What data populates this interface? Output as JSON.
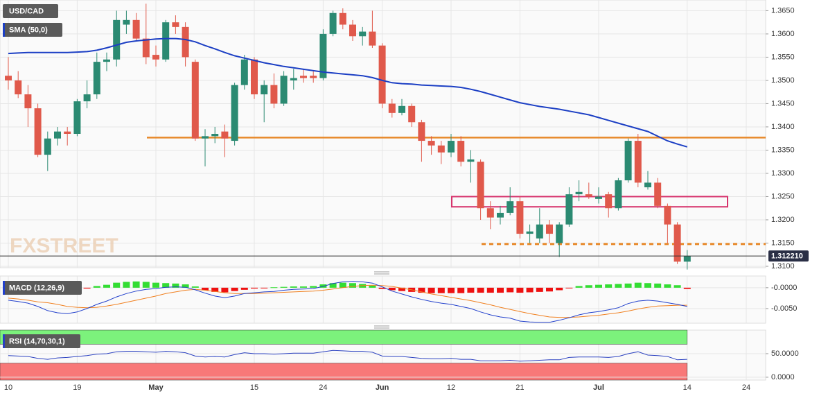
{
  "chart_data": [
    {
      "type": "candlestick",
      "title": "USD/CAD",
      "sma_label": "SMA (50,0)",
      "watermark": "FXSTREET",
      "up_color": "#2b8a72",
      "down_color": "#e0594b",
      "sma_color": "#1c3fc4",
      "open": [
        1.351,
        1.35,
        1.347,
        1.344,
        1.334,
        1.3375,
        1.339,
        1.3385,
        1.3455,
        1.347,
        1.354,
        1.3545,
        1.362,
        1.363,
        1.359,
        1.3555,
        1.3545,
        1.3625,
        1.3615,
        1.354,
        1.3375,
        1.338,
        1.339,
        1.337,
        1.349,
        1.3545,
        1.347,
        1.349,
        1.345,
        1.35,
        1.351,
        1.351,
        1.3505,
        1.36,
        1.3645,
        1.362,
        1.3595,
        1.3605,
        1.3575,
        1.345,
        1.343,
        1.3445,
        1.341,
        1.337,
        1.336,
        1.3345,
        1.337,
        1.3325,
        1.3325,
        1.3225,
        1.3205,
        1.3215,
        1.324,
        1.317,
        1.316,
        1.319,
        1.315,
        1.319,
        1.3255,
        1.3255,
        1.3245,
        1.3255,
        1.3225,
        1.3285,
        1.337,
        1.327,
        1.328,
        1.323,
        1.319,
        1.311
      ],
      "high": [
        1.355,
        1.352,
        1.349,
        1.345,
        1.339,
        1.34,
        1.34,
        1.346,
        1.35,
        1.356,
        1.356,
        1.365,
        1.365,
        1.3645,
        1.3665,
        1.3575,
        1.363,
        1.364,
        1.3625,
        1.3545,
        1.3395,
        1.34,
        1.3405,
        1.3495,
        1.3555,
        1.355,
        1.35,
        1.3515,
        1.352,
        1.3525,
        1.3525,
        1.352,
        1.361,
        1.365,
        1.3655,
        1.363,
        1.3615,
        1.365,
        1.358,
        1.346,
        1.346,
        1.345,
        1.3415,
        1.338,
        1.337,
        1.3385,
        1.338,
        1.335,
        1.333,
        1.324,
        1.323,
        1.327,
        1.325,
        1.319,
        1.3225,
        1.32,
        1.3195,
        1.327,
        1.3285,
        1.328,
        1.327,
        1.326,
        1.329,
        1.3375,
        1.3385,
        1.3305,
        1.329,
        1.3235,
        1.3195,
        1.3135
      ],
      "low": [
        1.348,
        1.3462,
        1.34,
        1.3335,
        1.3305,
        1.336,
        1.336,
        1.338,
        1.344,
        1.346,
        1.352,
        1.353,
        1.36,
        1.3585,
        1.3535,
        1.353,
        1.354,
        1.36,
        1.353,
        1.337,
        1.3315,
        1.3365,
        1.3335,
        1.336,
        1.348,
        1.346,
        1.341,
        1.344,
        1.3445,
        1.348,
        1.3495,
        1.3495,
        1.35,
        1.3595,
        1.361,
        1.3585,
        1.3575,
        1.357,
        1.344,
        1.342,
        1.3425,
        1.34,
        1.3325,
        1.334,
        1.332,
        1.3335,
        1.3315,
        1.328,
        1.32,
        1.318,
        1.319,
        1.321,
        1.316,
        1.315,
        1.315,
        1.315,
        1.312,
        1.3185,
        1.324,
        1.3245,
        1.3235,
        1.3205,
        1.322,
        1.328,
        1.327,
        1.3265,
        1.3225,
        1.315,
        1.3105,
        1.3093
      ],
      "close": [
        1.35,
        1.347,
        1.344,
        1.334,
        1.3375,
        1.339,
        1.3385,
        1.3455,
        1.347,
        1.354,
        1.3545,
        1.363,
        1.363,
        1.359,
        1.355,
        1.3545,
        1.3625,
        1.3615,
        1.355,
        1.3375,
        1.338,
        1.3385,
        1.3375,
        1.349,
        1.3545,
        1.347,
        1.349,
        1.345,
        1.351,
        1.3505,
        1.3505,
        1.3505,
        1.36,
        1.3645,
        1.362,
        1.3595,
        1.3605,
        1.3575,
        1.345,
        1.343,
        1.3445,
        1.341,
        1.337,
        1.336,
        1.3345,
        1.337,
        1.3325,
        1.333,
        1.3225,
        1.3205,
        1.3215,
        1.324,
        1.317,
        1.3175,
        1.319,
        1.317,
        1.319,
        1.3255,
        1.326,
        1.325,
        1.325,
        1.3225,
        1.3285,
        1.337,
        1.328,
        1.328,
        1.323,
        1.319,
        1.311,
        1.3122
      ],
      "sma": [
        1.3558,
        1.3559,
        1.356,
        1.356,
        1.356,
        1.356,
        1.356,
        1.3561,
        1.3562,
        1.3565,
        1.357,
        1.3576,
        1.3582,
        1.3585,
        1.3587,
        1.3589,
        1.359,
        1.359,
        1.3588,
        1.3583,
        1.3575,
        1.3568,
        1.356,
        1.3553,
        1.3548,
        1.3543,
        1.3538,
        1.3534,
        1.353,
        1.3527,
        1.3524,
        1.3521,
        1.3518,
        1.3516,
        1.3514,
        1.3512,
        1.351,
        1.3506,
        1.35,
        1.3495,
        1.3493,
        1.3492,
        1.349,
        1.3489,
        1.3488,
        1.3487,
        1.3485,
        1.3481,
        1.3476,
        1.347,
        1.3464,
        1.3458,
        1.3452,
        1.3448,
        1.3444,
        1.3441,
        1.3438,
        1.3434,
        1.343,
        1.3426,
        1.342,
        1.3414,
        1.3408,
        1.3402,
        1.3396,
        1.339,
        1.338,
        1.337,
        1.3363,
        1.3357
      ],
      "levels": [
        {
          "value": 1.3377,
          "color": "#e8892a",
          "style": "solid"
        },
        {
          "value": 1.3148,
          "color": "#e8892a",
          "style": "dashed"
        }
      ],
      "zone": {
        "low": 1.3228,
        "high": 1.325,
        "color": "#d6336c"
      },
      "last_price": {
        "value": 1.31221,
        "label": "1.312210"
      },
      "ylim": [
        1.3097,
        1.3673
      ],
      "yticks": [
        {
          "value": 1.31,
          "label": "1.3100"
        },
        {
          "value": 1.315,
          "label": "1.3150"
        },
        {
          "value": 1.32,
          "label": "1.3200"
        },
        {
          "value": 1.325,
          "label": "1.3250"
        },
        {
          "value": 1.33,
          "label": "1.3300"
        },
        {
          "value": 1.335,
          "label": "1.3350"
        },
        {
          "value": 1.34,
          "label": "1.3400"
        },
        {
          "value": 1.345,
          "label": "1.3450"
        },
        {
          "value": 1.35,
          "label": "1.3500"
        },
        {
          "value": 1.355,
          "label": "1.3550"
        },
        {
          "value": 1.36,
          "label": "1.3600"
        },
        {
          "value": 1.365,
          "label": "1.3650"
        }
      ],
      "xticks": [
        {
          "value": 0,
          "label": "10"
        },
        {
          "value": 7,
          "label": "19"
        },
        {
          "value": 15,
          "label": "May"
        },
        {
          "value": 25,
          "label": "15"
        },
        {
          "value": 32,
          "label": "24"
        },
        {
          "value": 38,
          "label": "Jun"
        },
        {
          "value": 45,
          "label": "12"
        },
        {
          "value": 52,
          "label": "21"
        },
        {
          "value": 60,
          "label": "Jul"
        },
        {
          "value": 69,
          "label": "14"
        },
        {
          "value": 75,
          "label": "24"
        }
      ],
      "grid": true
    },
    {
      "type": "macd",
      "title": "MACD (12,26,9)",
      "macd_color": "#2240cc",
      "signal_color": "#f08020",
      "up_color": "#33dd33",
      "down_color": "#ee1111",
      "macd": [
        -0.003,
        -0.0033,
        -0.0037,
        -0.0045,
        -0.0055,
        -0.006,
        -0.0062,
        -0.0058,
        -0.005,
        -0.004,
        -0.0032,
        -0.0022,
        -0.0014,
        -0.0008,
        -0.0004,
        -0.0002,
        0.0001,
        0.0002,
        0.0001,
        -0.0005,
        -0.0013,
        -0.002,
        -0.0024,
        -0.002,
        -0.0014,
        -0.0012,
        -0.001,
        -0.0009,
        -0.0006,
        -0.0004,
        -0.0003,
        -0.0002,
        0.0003,
        0.001,
        0.0014,
        0.0015,
        0.0014,
        0.0011,
        0.0002,
        -0.0008,
        -0.0015,
        -0.0022,
        -0.0028,
        -0.0033,
        -0.0037,
        -0.004,
        -0.0045,
        -0.005,
        -0.0058,
        -0.0065,
        -0.007,
        -0.0073,
        -0.008,
        -0.0082,
        -0.0083,
        -0.0083,
        -0.0078,
        -0.0072,
        -0.0065,
        -0.006,
        -0.0057,
        -0.0053,
        -0.0048,
        -0.0038,
        -0.0032,
        -0.003,
        -0.0032,
        -0.0036,
        -0.004,
        -0.0045
      ],
      "signal": [
        -0.0025,
        -0.0027,
        -0.003,
        -0.0034,
        -0.0036,
        -0.004,
        -0.0045,
        -0.0047,
        -0.0048,
        -0.0047,
        -0.0044,
        -0.004,
        -0.0035,
        -0.003,
        -0.0025,
        -0.002,
        -0.0014,
        -0.001,
        -0.0006,
        -0.0004,
        -0.0006,
        -0.0009,
        -0.0012,
        -0.0014,
        -0.0014,
        -0.0014,
        -0.0013,
        -0.0012,
        -0.0011,
        -0.001,
        -0.0009,
        -0.0008,
        -0.0006,
        -0.0003,
        0.0,
        0.0003,
        0.0005,
        0.0006,
        0.0005,
        0.0003,
        -0.0001,
        -0.0005,
        -0.001,
        -0.0015,
        -0.0019,
        -0.0023,
        -0.0027,
        -0.0031,
        -0.0036,
        -0.0041,
        -0.0047,
        -0.0052,
        -0.0057,
        -0.0062,
        -0.0066,
        -0.007,
        -0.0071,
        -0.0071,
        -0.007,
        -0.0068,
        -0.0066,
        -0.0063,
        -0.006,
        -0.0056,
        -0.0051,
        -0.0047,
        -0.0044,
        -0.0043,
        -0.0042,
        -0.0042
      ],
      "histogram": [
        -0.0005,
        -0.0006,
        -0.0007,
        -0.0007,
        -0.0006,
        -0.0005,
        -0.0004,
        -0.0003,
        -0.0002,
        0.0004,
        0.0007,
        0.0012,
        0.0014,
        0.0015,
        0.0014,
        0.0012,
        0.0011,
        0.001,
        0.0008,
        0.0003,
        -0.0006,
        -0.001,
        -0.0011,
        -0.0008,
        -0.0005,
        -0.0002,
        -0.0001,
        0.0001,
        0.0002,
        0.0003,
        0.0003,
        0.0004,
        0.0008,
        0.0011,
        0.0012,
        0.0011,
        0.0009,
        0.0005,
        -0.0003,
        -0.0006,
        -0.0008,
        -0.001,
        -0.0012,
        -0.0013,
        -0.0013,
        -0.0013,
        -0.0013,
        -0.0012,
        -0.0012,
        -0.0012,
        -0.0012,
        -0.0011,
        -0.0012,
        -0.0011,
        -0.001,
        -0.0009,
        -0.0006,
        -0.0001,
        0.0004,
        0.0006,
        0.0007,
        0.0008,
        0.0009,
        0.001,
        0.0012,
        0.0011,
        0.001,
        0.0008,
        0.0006,
        -0.0003
      ],
      "ylim": [
        -0.0085,
        0.0028
      ],
      "yticks": [
        {
          "value": 0,
          "label": "-0.0000"
        },
        {
          "value": -0.005,
          "label": "-0.0050"
        }
      ]
    },
    {
      "type": "rsi",
      "title": "RSI (14,70,30,1)",
      "line_color": "#2a40c0",
      "overbought": 70,
      "oversold": 30,
      "overbought_color": "#7cf27c",
      "oversold_color": "#f87878",
      "values": [
        46,
        45,
        44,
        40,
        38,
        41,
        42,
        44,
        46,
        49,
        50,
        54,
        55,
        55,
        54,
        53,
        55,
        54,
        52,
        45,
        43,
        44,
        43,
        48,
        52,
        50,
        50,
        49,
        50,
        51,
        51,
        51,
        54,
        57,
        56,
        55,
        55,
        53,
        45,
        44,
        44,
        42,
        40,
        39,
        39,
        40,
        38,
        38,
        35,
        35,
        35,
        36,
        34,
        35,
        36,
        37,
        37,
        42,
        43,
        43,
        43,
        42,
        44,
        50,
        54,
        47,
        46,
        44,
        37,
        38
      ],
      "ylim": [
        -6,
        100
      ],
      "yticks": [
        {
          "value": 50,
          "label": "50.0000"
        },
        {
          "value": 0,
          "label": "0.0000"
        }
      ]
    }
  ]
}
